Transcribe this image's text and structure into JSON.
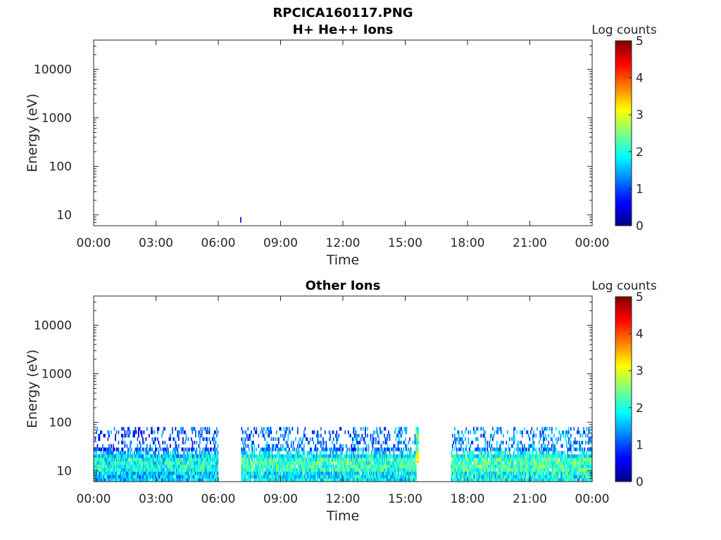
{
  "figure_title": "RPCICA160117.PNG",
  "colorscale": [
    "#00008f",
    "#0000ff",
    "#00ffff",
    "#ffff00",
    "#ff0000",
    "#800000"
  ],
  "chart_data": [
    {
      "type": "heatmap",
      "title": "H+ He++ Ions",
      "xlabel": "Time",
      "ylabel": "Energy (eV)",
      "x_ticks": [
        "00:00",
        "03:00",
        "06:00",
        "09:00",
        "12:00",
        "15:00",
        "18:00",
        "21:00",
        "00:00"
      ],
      "xlim_hours": [
        0,
        24
      ],
      "y_scale": "log",
      "y_ticks": [
        10,
        100,
        1000,
        10000
      ],
      "y_tick_labels": [
        "10",
        "100",
        "1000",
        "10000"
      ],
      "ylim": [
        6,
        40000
      ],
      "colorbar": {
        "label": "Log counts",
        "ticks": [
          "0",
          "1",
          "2",
          "3",
          "4",
          "5"
        ],
        "range": [
          0,
          5
        ]
      },
      "data_segments": [
        {
          "start_hour": 7.05,
          "end_hour": 7.1,
          "energy_min": 7,
          "energy_max": 9,
          "mean_log_counts": 0.2
        }
      ]
    },
    {
      "type": "heatmap",
      "title": "Other Ions",
      "xlabel": "Time",
      "ylabel": "Energy (eV)",
      "x_ticks": [
        "00:00",
        "03:00",
        "06:00",
        "09:00",
        "12:00",
        "15:00",
        "18:00",
        "21:00",
        "00:00"
      ],
      "xlim_hours": [
        0,
        24
      ],
      "y_scale": "log",
      "y_ticks": [
        10,
        100,
        1000,
        10000
      ],
      "y_tick_labels": [
        "10",
        "100",
        "1000",
        "10000"
      ],
      "ylim": [
        6,
        40000
      ],
      "colorbar": {
        "label": "Log counts",
        "ticks": [
          "0",
          "1",
          "2",
          "3",
          "4",
          "5"
        ],
        "range": [
          0,
          5
        ]
      },
      "data_segments": [
        {
          "start_hour": 0.0,
          "end_hour": 6.0,
          "energy_min": 6,
          "energy_max": 80,
          "mean_log_counts": 1.6
        },
        {
          "start_hour": 7.1,
          "end_hour": 15.5,
          "energy_min": 6,
          "energy_max": 80,
          "mean_log_counts": 1.8
        },
        {
          "start_hour": 15.5,
          "end_hour": 15.65,
          "energy_min": 15,
          "energy_max": 80,
          "mean_log_counts": 2.8
        },
        {
          "start_hour": 17.2,
          "end_hour": 24.0,
          "energy_min": 6,
          "energy_max": 80,
          "mean_log_counts": 1.9
        }
      ]
    }
  ]
}
